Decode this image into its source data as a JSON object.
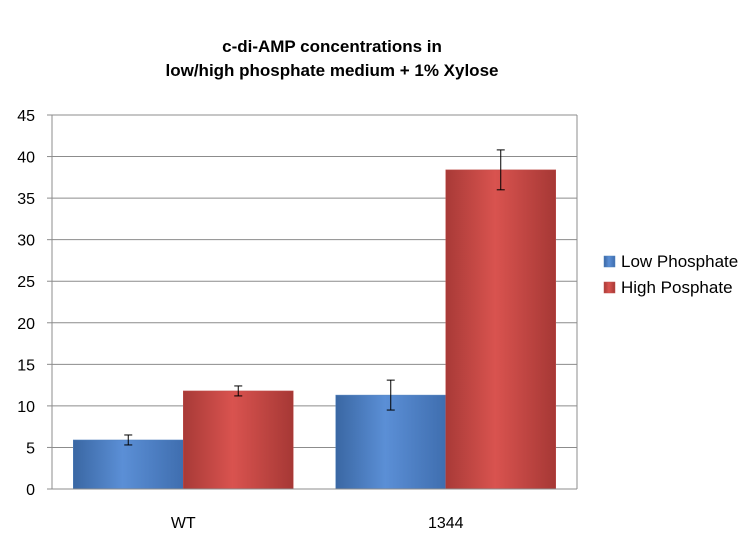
{
  "chart_data": {
    "type": "bar",
    "title_lines": [
      "c-di-AMP concentrations in",
      "low/high phosphate medium + 1% Xylose"
    ],
    "categories": [
      "WT",
      "1344"
    ],
    "series": [
      {
        "name": "Low Phosphate",
        "values": [
          5.9,
          11.3
        ],
        "errors": [
          0.6,
          1.8
        ],
        "color": "#4f81bd"
      },
      {
        "name": "High Posphate",
        "values": [
          11.8,
          38.4
        ],
        "errors": [
          0.6,
          2.4
        ],
        "color": "#c0504d"
      }
    ],
    "ylim": [
      0,
      45
    ],
    "yticks": [
      0,
      5,
      10,
      15,
      20,
      25,
      30,
      35,
      40,
      45
    ],
    "grid": true,
    "legend_position": "right"
  }
}
